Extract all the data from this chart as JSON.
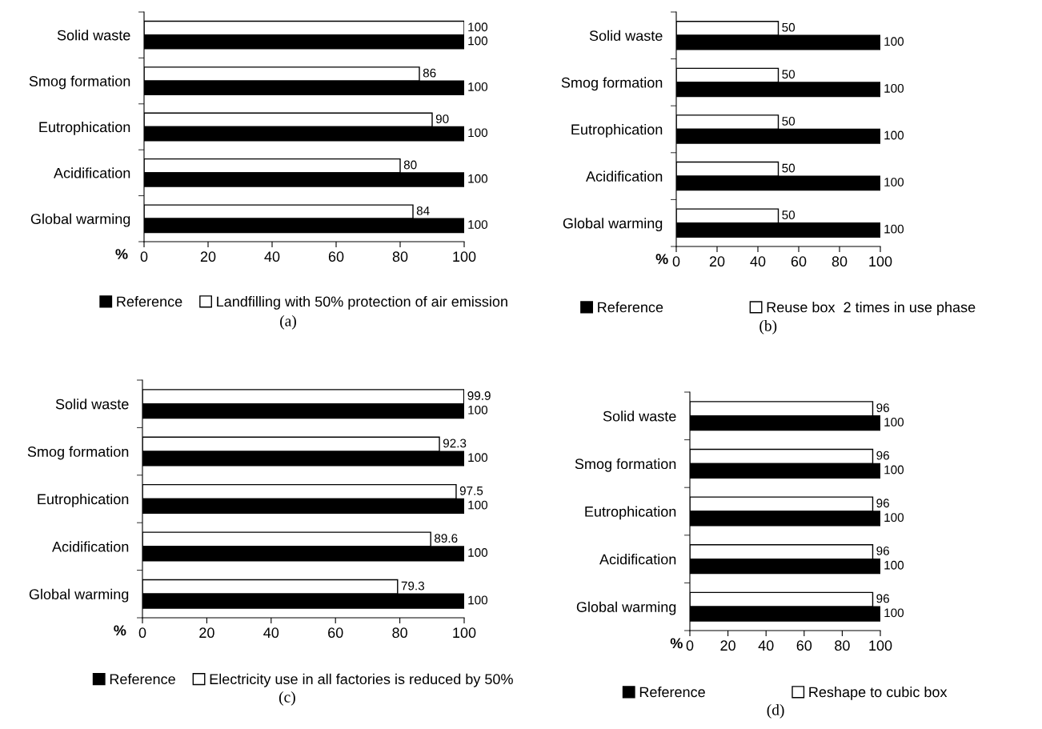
{
  "chart_data": [
    {
      "type": "bar",
      "orientation": "horizontal",
      "categories": [
        "Solid waste",
        "Smog formation",
        "Eutrophication",
        "Acidification",
        "Global warming"
      ],
      "series": [
        {
          "name": "Landfilling with 50% protection of air emission",
          "color": "#ffffff",
          "values": [
            100,
            86,
            90,
            80,
            84
          ]
        },
        {
          "name": "Reference",
          "color": "#000000",
          "values": [
            100,
            100,
            100,
            100,
            100
          ]
        }
      ],
      "xlim": [
        0,
        100
      ],
      "xticks": [
        0,
        20,
        40,
        60,
        80,
        100
      ],
      "xlabel": "%",
      "data_labels": true,
      "legend": "bottom",
      "grid": false,
      "annotations": [
        "(a)"
      ]
    },
    {
      "type": "bar",
      "orientation": "horizontal",
      "categories": [
        "Solid waste",
        "Smog formation",
        "Eutrophication",
        "Acidification",
        "Global warming"
      ],
      "series": [
        {
          "name": "Reuse box  2 times in use phase",
          "color": "#ffffff",
          "values": [
            50,
            50,
            50,
            50,
            50
          ]
        },
        {
          "name": "Reference",
          "color": "#000000",
          "values": [
            100,
            100,
            100,
            100,
            100
          ]
        }
      ],
      "xlim": [
        0,
        100
      ],
      "xticks": [
        0,
        20,
        40,
        60,
        80,
        100
      ],
      "xlabel": "%",
      "data_labels": true,
      "legend": "bottom",
      "grid": false,
      "annotations": [
        "(b)"
      ]
    },
    {
      "type": "bar",
      "orientation": "horizontal",
      "categories": [
        "Solid waste",
        "Smog formation",
        "Eutrophication",
        "Acidification",
        "Global warming"
      ],
      "series": [
        {
          "name": "Electricity use in all factories is reduced by 50%",
          "color": "#ffffff",
          "values": [
            99.9,
            92.3,
            97.5,
            89.6,
            79.3
          ]
        },
        {
          "name": "Reference",
          "color": "#000000",
          "values": [
            100,
            100,
            100,
            100,
            100
          ]
        }
      ],
      "xlim": [
        0,
        100
      ],
      "xticks": [
        0,
        20,
        40,
        60,
        80,
        100
      ],
      "xlabel": "%",
      "data_labels": true,
      "legend": "bottom",
      "grid": false,
      "annotations": [
        "(c)"
      ]
    },
    {
      "type": "bar",
      "orientation": "horizontal",
      "categories": [
        "Solid waste",
        "Smog formation",
        "Eutrophication",
        "Acidification",
        "Global warming"
      ],
      "series": [
        {
          "name": "Reshape to cubic box",
          "color": "#ffffff",
          "values": [
            96,
            96,
            96,
            96,
            96
          ]
        },
        {
          "name": "Reference",
          "color": "#000000",
          "values": [
            100,
            100,
            100,
            100,
            100
          ]
        }
      ],
      "xlim": [
        0,
        100
      ],
      "xticks": [
        0,
        20,
        40,
        60,
        80,
        100
      ],
      "xlabel": "%",
      "data_labels": true,
      "legend": "bottom",
      "grid": false,
      "annotations": [
        "(d)"
      ]
    }
  ]
}
